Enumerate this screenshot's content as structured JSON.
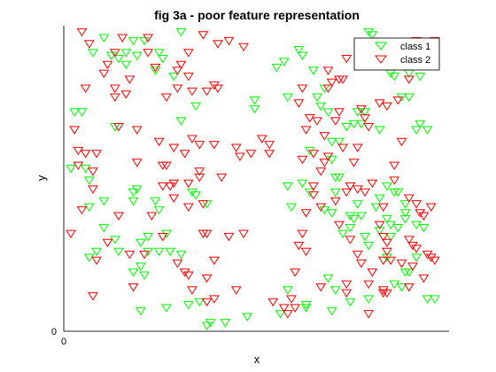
{
  "chart_data": {
    "type": "scatter",
    "title": "fig 3a - poor feature representation",
    "xlabel": "x",
    "ylabel": "y",
    "xlim": [
      0,
      1
    ],
    "ylim": [
      0,
      1
    ],
    "x_ticks": [
      {
        "value": 0,
        "label": "0"
      }
    ],
    "y_ticks": [
      {
        "value": 0,
        "label": "0"
      }
    ],
    "grid": false,
    "legend_location": "top-right",
    "marker": "triangle-down",
    "series": [
      {
        "name": "class 1",
        "color": "#00ff00",
        "points": [
          [
            0.09,
            0.97
          ],
          [
            0.17,
            0.96
          ],
          [
            0.3,
            0.99
          ],
          [
            0.06,
            0.92
          ],
          [
            0.11,
            0.91
          ],
          [
            0.13,
            0.9
          ],
          [
            0.15,
            0.88
          ],
          [
            0.15,
            0.92
          ],
          [
            0.24,
            0.92
          ],
          [
            0.25,
            0.9
          ],
          [
            0.2,
            0.96
          ],
          [
            0.18,
            0.91
          ],
          [
            0.23,
            0.86
          ],
          [
            0.28,
            0.84
          ],
          [
            0.01,
            0.72
          ],
          [
            0.03,
            0.72
          ],
          [
            0.12,
            0.67
          ],
          [
            0.34,
            0.74
          ],
          [
            0.3,
            0.69
          ],
          [
            0.0,
            0.53
          ],
          [
            0.04,
            0.53
          ],
          [
            0.05,
            0.49
          ],
          [
            0.05,
            0.4
          ],
          [
            0.09,
            0.42
          ],
          [
            0.09,
            0.33
          ],
          [
            0.17,
            0.45
          ],
          [
            0.18,
            0.46
          ],
          [
            0.17,
            0.42
          ],
          [
            0.23,
            0.42
          ],
          [
            0.24,
            0.39
          ],
          [
            0.37,
            0.41
          ],
          [
            0.34,
            0.44
          ],
          [
            0.33,
            0.45
          ],
          [
            0.26,
            0.31
          ],
          [
            0.21,
            0.3
          ],
          [
            0.19,
            0.28
          ],
          [
            0.12,
            0.29
          ],
          [
            0.13,
            0.25
          ],
          [
            0.07,
            0.25
          ],
          [
            0.05,
            0.23
          ],
          [
            0.21,
            0.25
          ],
          [
            0.19,
            0.2
          ],
          [
            0.24,
            0.25
          ],
          [
            0.27,
            0.25
          ],
          [
            0.3,
            0.24
          ],
          [
            0.17,
            0.18
          ],
          [
            0.2,
            0.17
          ],
          [
            0.19,
            0.05
          ],
          [
            0.26,
            0.06
          ],
          [
            0.32,
            0.07
          ],
          [
            0.35,
            0.08
          ],
          [
            0.37,
            0.0
          ],
          [
            0.38,
            0.01
          ],
          [
            0.42,
            0.01
          ],
          [
            0.48,
            0.03
          ],
          [
            0.57,
            0.04
          ],
          [
            0.64,
            0.06
          ],
          [
            0.59,
            0.12
          ],
          [
            0.64,
            0.07
          ],
          [
            0.71,
            0.05
          ],
          [
            0.72,
            0.12
          ],
          [
            0.7,
            0.16
          ],
          [
            0.76,
            0.08
          ],
          [
            0.81,
            0.09
          ],
          [
            0.88,
            0.14
          ],
          [
            0.9,
            0.13
          ],
          [
            0.91,
            0.18
          ],
          [
            0.97,
            0.09
          ],
          [
            0.99,
            0.09
          ],
          [
            0.59,
            0.47
          ],
          [
            0.6,
            0.4
          ],
          [
            0.63,
            0.48
          ],
          [
            0.65,
            0.45
          ],
          [
            0.69,
            0.39
          ],
          [
            0.72,
            0.45
          ],
          [
            0.72,
            0.5
          ],
          [
            0.65,
            0.59
          ],
          [
            0.71,
            0.56
          ],
          [
            0.73,
            0.62
          ],
          [
            0.75,
            0.67
          ],
          [
            0.77,
            0.68
          ],
          [
            0.79,
            0.68
          ],
          [
            0.84,
            0.66
          ],
          [
            0.8,
            0.72
          ],
          [
            0.86,
            0.74
          ],
          [
            0.88,
            0.84
          ],
          [
            0.95,
            0.84
          ],
          [
            0.9,
            0.77
          ],
          [
            0.92,
            0.77
          ],
          [
            0.95,
            0.68
          ],
          [
            0.78,
            0.72
          ],
          [
            0.58,
            0.89
          ],
          [
            0.56,
            0.87
          ],
          [
            0.59,
            0.77
          ],
          [
            0.5,
            0.76
          ],
          [
            0.5,
            0.73
          ],
          [
            0.73,
            0.5
          ],
          [
            0.71,
            0.38
          ],
          [
            0.76,
            0.37
          ],
          [
            0.77,
            0.36
          ],
          [
            0.76,
            0.33
          ],
          [
            0.74,
            0.31
          ],
          [
            0.78,
            0.41
          ],
          [
            0.79,
            0.37
          ],
          [
            0.8,
            0.3
          ],
          [
            0.81,
            0.27
          ],
          [
            0.84,
            0.32
          ],
          [
            0.87,
            0.34
          ],
          [
            0.87,
            0.3
          ],
          [
            0.86,
            0.36
          ],
          [
            0.86,
            0.23
          ],
          [
            0.83,
            0.4
          ],
          [
            0.84,
            0.43
          ],
          [
            0.86,
            0.47
          ],
          [
            0.88,
            0.45
          ],
          [
            0.89,
            0.45
          ],
          [
            0.91,
            0.41
          ],
          [
            0.91,
            0.38
          ],
          [
            0.89,
            0.33
          ],
          [
            0.91,
            0.36
          ],
          [
            0.94,
            0.34
          ],
          [
            0.92,
            0.18
          ],
          [
            0.94,
            0.23
          ],
          [
            0.96,
            0.33
          ],
          [
            0.66,
            0.86
          ],
          [
            0.63,
            0.91
          ],
          [
            0.62,
            0.93
          ],
          [
            0.67,
            0.77
          ],
          [
            0.68,
            0.74
          ],
          [
            0.69,
            0.8
          ],
          [
            0.7,
            0.72
          ],
          [
            0.71,
            0.62
          ],
          [
            0.92,
            0.85
          ],
          [
            0.81,
            0.99
          ],
          [
            0.82,
            0.98
          ],
          [
            0.87,
            0.85
          ],
          [
            0.94,
            0.66
          ],
          [
            0.97,
            0.66
          ]
        ]
      },
      {
        "name": "class 2",
        "color": "#ff0000",
        "points": [
          [
            0.03,
            0.99
          ],
          [
            0.05,
            0.95
          ],
          [
            0.14,
            0.97
          ],
          [
            0.21,
            0.97
          ],
          [
            0.12,
            0.92
          ],
          [
            0.21,
            0.92
          ],
          [
            0.1,
            0.88
          ],
          [
            0.23,
            0.87
          ],
          [
            0.29,
            0.86
          ],
          [
            0.32,
            0.84
          ],
          [
            0.29,
            0.8
          ],
          [
            0.33,
            0.79
          ],
          [
            0.26,
            0.77
          ],
          [
            0.16,
            0.83
          ],
          [
            0.12,
            0.8
          ],
          [
            0.39,
            0.81
          ],
          [
            0.4,
            0.8
          ],
          [
            0.3,
            0.88
          ],
          [
            0.32,
            0.92
          ],
          [
            0.36,
            0.98
          ],
          [
            0.43,
            0.96
          ],
          [
            0.47,
            0.94
          ],
          [
            0.4,
            0.95
          ],
          [
            0.37,
            0.79
          ],
          [
            0.04,
            0.8
          ],
          [
            0.09,
            0.85
          ],
          [
            0.12,
            0.77
          ],
          [
            0.15,
            0.78
          ],
          [
            0.01,
            0.66
          ],
          [
            0.02,
            0.59
          ],
          [
            0.04,
            0.58
          ],
          [
            0.07,
            0.58
          ],
          [
            0.02,
            0.54
          ],
          [
            0.06,
            0.52
          ],
          [
            0.06,
            0.46
          ],
          [
            0.13,
            0.67
          ],
          [
            0.18,
            0.66
          ],
          [
            0.24,
            0.62
          ],
          [
            0.28,
            0.6
          ],
          [
            0.31,
            0.58
          ],
          [
            0.33,
            0.63
          ],
          [
            0.35,
            0.61
          ],
          [
            0.41,
            0.5
          ],
          [
            0.35,
            0.5
          ],
          [
            0.32,
            0.48
          ],
          [
            0.28,
            0.48
          ],
          [
            0.27,
            0.47
          ],
          [
            0.25,
            0.47
          ],
          [
            0.22,
            0.37
          ],
          [
            0.28,
            0.43
          ],
          [
            0.32,
            0.4
          ],
          [
            0.36,
            0.41
          ],
          [
            0.18,
            0.55
          ],
          [
            0.25,
            0.54
          ],
          [
            0.26,
            0.54
          ],
          [
            0.35,
            0.52
          ],
          [
            0.39,
            0.61
          ],
          [
            0.45,
            0.6
          ],
          [
            0.46,
            0.57
          ],
          [
            0.49,
            0.58
          ],
          [
            0.52,
            0.63
          ],
          [
            0.54,
            0.61
          ],
          [
            0.54,
            0.58
          ],
          [
            0.36,
            0.31
          ],
          [
            0.37,
            0.31
          ],
          [
            0.43,
            0.3
          ],
          [
            0.47,
            0.31
          ],
          [
            0.03,
            0.39
          ],
          [
            0.0,
            0.31
          ],
          [
            0.13,
            0.37
          ],
          [
            0.1,
            0.28
          ],
          [
            0.07,
            0.22
          ],
          [
            0.2,
            0.24
          ],
          [
            0.25,
            0.3
          ],
          [
            0.29,
            0.21
          ],
          [
            0.31,
            0.18
          ],
          [
            0.37,
            0.16
          ],
          [
            0.33,
            0.12
          ],
          [
            0.37,
            0.08
          ],
          [
            0.39,
            0.09
          ],
          [
            0.45,
            0.12
          ],
          [
            0.06,
            0.1
          ],
          [
            0.17,
            0.13
          ],
          [
            0.16,
            0.24
          ],
          [
            0.39,
            0.22
          ],
          [
            0.32,
            0.17
          ],
          [
            0.55,
            0.08
          ],
          [
            0.58,
            0.06
          ],
          [
            0.59,
            0.04
          ],
          [
            0.61,
            0.18
          ],
          [
            0.64,
            0.25
          ],
          [
            0.62,
            0.27
          ],
          [
            0.63,
            0.31
          ],
          [
            0.64,
            0.38
          ],
          [
            0.66,
            0.44
          ],
          [
            0.66,
            0.47
          ],
          [
            0.68,
            0.52
          ],
          [
            0.66,
            0.58
          ],
          [
            0.63,
            0.56
          ],
          [
            0.64,
            0.66
          ],
          [
            0.65,
            0.7
          ],
          [
            0.62,
            0.75
          ],
          [
            0.63,
            0.8
          ],
          [
            0.67,
            0.69
          ],
          [
            0.69,
            0.64
          ],
          [
            0.69,
            0.55
          ],
          [
            0.72,
            0.69
          ],
          [
            0.7,
            0.8
          ],
          [
            0.71,
            0.82
          ],
          [
            0.74,
            0.83
          ],
          [
            0.75,
            0.9
          ],
          [
            0.73,
            0.83
          ],
          [
            0.7,
            0.86
          ],
          [
            0.73,
            0.72
          ],
          [
            0.79,
            0.73
          ],
          [
            0.8,
            0.7
          ],
          [
            0.84,
            0.75
          ],
          [
            0.81,
            0.67
          ],
          [
            0.86,
            0.74
          ],
          [
            0.89,
            0.76
          ],
          [
            0.91,
            0.89
          ],
          [
            0.94,
            0.96
          ],
          [
            0.98,
            0.94
          ],
          [
            0.99,
            0.96
          ],
          [
            0.97,
            0.88
          ],
          [
            0.92,
            0.83
          ],
          [
            0.9,
            0.62
          ],
          [
            0.88,
            0.54
          ],
          [
            0.88,
            0.49
          ],
          [
            0.92,
            0.43
          ],
          [
            0.94,
            0.41
          ],
          [
            0.95,
            0.38
          ],
          [
            0.98,
            0.4
          ],
          [
            0.96,
            0.37
          ],
          [
            0.92,
            0.29
          ],
          [
            0.93,
            0.27
          ],
          [
            0.86,
            0.25
          ],
          [
            0.85,
            0.22
          ],
          [
            0.87,
            0.22
          ],
          [
            0.9,
            0.21
          ],
          [
            0.93,
            0.2
          ],
          [
            0.94,
            0.26
          ],
          [
            0.97,
            0.24
          ],
          [
            0.98,
            0.23
          ],
          [
            0.99,
            0.22
          ],
          [
            0.96,
            0.16
          ],
          [
            0.92,
            0.13
          ],
          [
            0.82,
            0.18
          ],
          [
            0.79,
            0.21
          ],
          [
            0.78,
            0.24
          ],
          [
            0.76,
            0.29
          ],
          [
            0.73,
            0.34
          ],
          [
            0.72,
            0.42
          ],
          [
            0.75,
            0.45
          ],
          [
            0.76,
            0.47
          ],
          [
            0.78,
            0.46
          ],
          [
            0.85,
            0.4
          ],
          [
            0.85,
            0.3
          ],
          [
            0.86,
            0.28
          ],
          [
            0.84,
            0.34
          ],
          [
            0.8,
            0.45
          ],
          [
            0.82,
            0.48
          ],
          [
            0.78,
            0.6
          ],
          [
            0.77,
            0.55
          ],
          [
            0.74,
            0.6
          ],
          [
            0.7,
            0.57
          ],
          [
            0.68,
            0.4
          ],
          [
            0.75,
            0.14
          ],
          [
            0.81,
            0.04
          ],
          [
            0.85,
            0.12
          ],
          [
            0.81,
            0.14
          ],
          [
            0.85,
            0.11
          ],
          [
            0.86,
            0.11
          ],
          [
            0.75,
            0.11
          ],
          [
            0.61,
            0.06
          ],
          [
            0.6,
            0.09
          ],
          [
            0.68,
            0.13
          ]
        ]
      }
    ]
  }
}
